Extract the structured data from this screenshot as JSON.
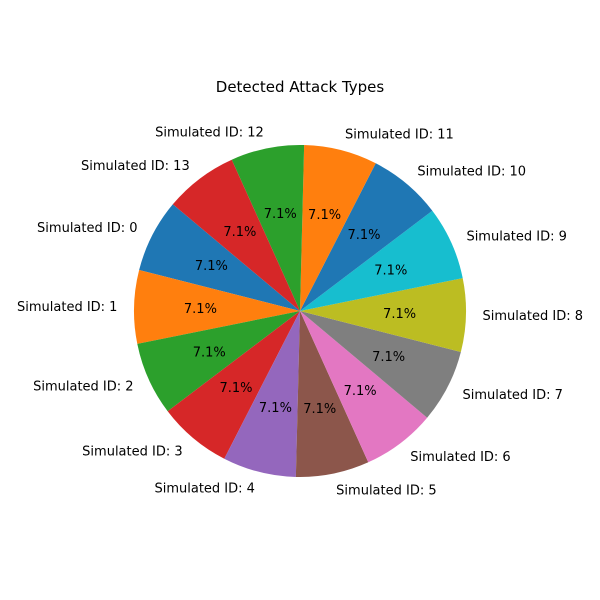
{
  "chart_data": {
    "type": "pie",
    "title": "Detected Attack Types",
    "start_angle_deg": 140,
    "direction": "counterclockwise",
    "slices": [
      {
        "label": "Simulated ID: 0",
        "value": 1,
        "pct_label": "7.1%",
        "color": "#1f77b4"
      },
      {
        "label": "Simulated ID: 1",
        "value": 1,
        "pct_label": "7.1%",
        "color": "#ff7f0e"
      },
      {
        "label": "Simulated ID: 2",
        "value": 1,
        "pct_label": "7.1%",
        "color": "#2ca02c"
      },
      {
        "label": "Simulated ID: 3",
        "value": 1,
        "pct_label": "7.1%",
        "color": "#d62728"
      },
      {
        "label": "Simulated ID: 4",
        "value": 1,
        "pct_label": "7.1%",
        "color": "#9467bd"
      },
      {
        "label": "Simulated ID: 5",
        "value": 1,
        "pct_label": "7.1%",
        "color": "#8c564b"
      },
      {
        "label": "Simulated ID: 6",
        "value": 1,
        "pct_label": "7.1%",
        "color": "#e377c2"
      },
      {
        "label": "Simulated ID: 7",
        "value": 1,
        "pct_label": "7.1%",
        "color": "#7f7f7f"
      },
      {
        "label": "Simulated ID: 8",
        "value": 1,
        "pct_label": "7.1%",
        "color": "#bcbd22"
      },
      {
        "label": "Simulated ID: 9",
        "value": 1,
        "pct_label": "7.1%",
        "color": "#17becf"
      },
      {
        "label": "Simulated ID: 10",
        "value": 1,
        "pct_label": "7.1%",
        "color": "#1f77b4"
      },
      {
        "label": "Simulated ID: 11",
        "value": 1,
        "pct_label": "7.1%",
        "color": "#ff7f0e"
      },
      {
        "label": "Simulated ID: 12",
        "value": 1,
        "pct_label": "7.1%",
        "color": "#2ca02c"
      },
      {
        "label": "Simulated ID: 13",
        "value": 1,
        "pct_label": "7.1%",
        "color": "#d62728"
      }
    ]
  }
}
